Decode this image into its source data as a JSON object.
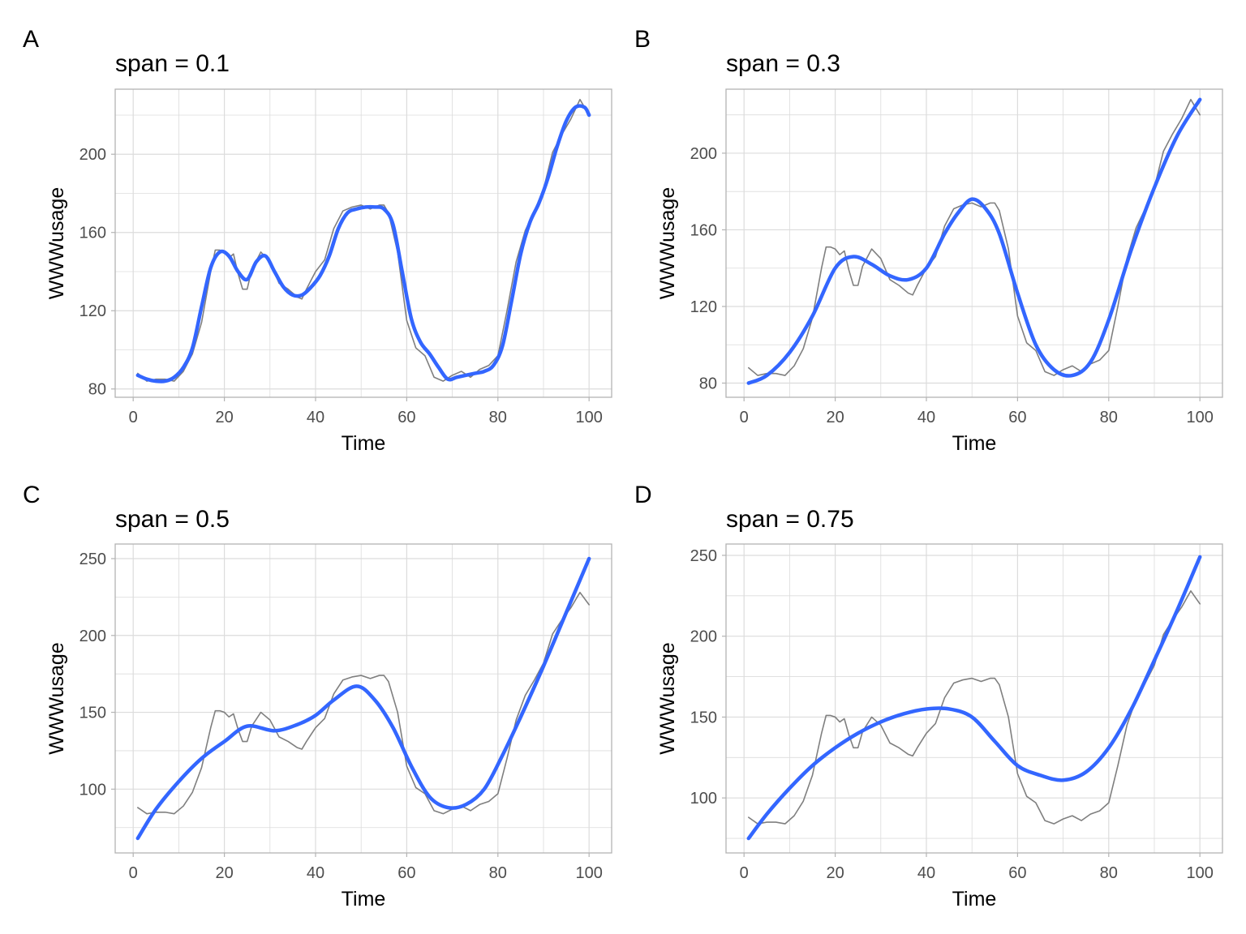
{
  "colors": {
    "raw_line": "#7f7f7f",
    "smooth_line": "#3366ff",
    "grid": "#dcdcdc",
    "panel_border": "#b3b3b3",
    "tick_text": "#4d4d4d"
  },
  "chart_data": [
    {
      "type": "line",
      "tag": "A",
      "title": "span = 0.1",
      "xlabel": "Time",
      "ylabel": "WWWusage",
      "xlim": [
        -3.95,
        104.95
      ],
      "ylim": [
        75.75,
        233.25
      ],
      "xticks": [
        0,
        20,
        40,
        60,
        80,
        100
      ],
      "yticks": [
        80,
        120,
        160,
        200
      ],
      "grid": true,
      "series": [
        {
          "key": "raw",
          "x": [
            1,
            3,
            5,
            7,
            9,
            11,
            13,
            15,
            17,
            18,
            19,
            20,
            21,
            22,
            23,
            24,
            25,
            26,
            28,
            30,
            32,
            34,
            36,
            37,
            38,
            40,
            42,
            44,
            46,
            48,
            50,
            52,
            54,
            55,
            56,
            58,
            60,
            62,
            64,
            66,
            68,
            70,
            72,
            74,
            76,
            78,
            80,
            82,
            84,
            86,
            88,
            90,
            92,
            94,
            96,
            97,
            98,
            100
          ],
          "y": [
            88,
            84,
            85,
            85,
            84,
            89,
            98,
            114,
            140,
            151,
            151,
            150,
            147,
            149,
            139,
            131,
            131,
            141,
            150,
            145,
            134,
            131,
            127,
            126,
            131,
            140,
            146,
            162,
            171,
            173,
            174,
            172,
            174,
            174,
            170,
            150,
            115,
            101,
            97,
            86,
            84,
            87,
            89,
            86,
            90,
            92,
            97,
            120,
            145,
            161,
            171,
            182,
            201,
            210,
            218,
            223,
            228,
            220
          ]
        },
        {
          "key": "smooth",
          "x": [
            1,
            3,
            5,
            7,
            9,
            11,
            13,
            15,
            17,
            19,
            21,
            23,
            25,
            27,
            29,
            31,
            33,
            35,
            37,
            39,
            41,
            43,
            45,
            47,
            49,
            51,
            53,
            55,
            57,
            59,
            61,
            63,
            65,
            67,
            69,
            71,
            73,
            75,
            77,
            79,
            81,
            83,
            85,
            87,
            89,
            91,
            93,
            95,
            97,
            99,
            100
          ],
          "y": [
            87,
            85,
            84,
            84,
            86,
            91,
            101,
            122,
            142,
            150,
            148,
            140,
            136,
            145,
            148,
            140,
            132,
            128,
            128,
            132,
            138,
            148,
            162,
            170,
            172,
            173,
            173,
            172,
            164,
            140,
            116,
            104,
            98,
            91,
            85,
            86,
            87,
            88,
            89,
            92,
            102,
            125,
            149,
            165,
            175,
            188,
            204,
            217,
            224,
            224,
            220
          ]
        }
      ]
    },
    {
      "type": "line",
      "tag": "B",
      "title": "span = 0.3",
      "xlabel": "Time",
      "ylabel": "WWWusage",
      "xlim": [
        -3.95,
        104.95
      ],
      "ylim": [
        72.6,
        233.4
      ],
      "xticks": [
        0,
        20,
        40,
        60,
        80,
        100
      ],
      "yticks": [
        80,
        120,
        160,
        200
      ],
      "grid": true,
      "series": [
        {
          "key": "raw",
          "x": [
            1,
            3,
            5,
            7,
            9,
            11,
            13,
            15,
            17,
            18,
            19,
            20,
            21,
            22,
            23,
            24,
            25,
            26,
            28,
            30,
            32,
            34,
            36,
            37,
            38,
            40,
            42,
            44,
            46,
            48,
            50,
            52,
            54,
            55,
            56,
            58,
            60,
            62,
            64,
            66,
            68,
            70,
            72,
            74,
            76,
            78,
            80,
            82,
            84,
            86,
            88,
            90,
            92,
            94,
            96,
            97,
            98,
            100
          ],
          "y": [
            88,
            84,
            85,
            85,
            84,
            89,
            98,
            114,
            140,
            151,
            151,
            150,
            147,
            149,
            139,
            131,
            131,
            141,
            150,
            145,
            134,
            131,
            127,
            126,
            131,
            140,
            146,
            162,
            171,
            173,
            174,
            172,
            174,
            174,
            170,
            150,
            115,
            101,
            97,
            86,
            84,
            87,
            89,
            86,
            90,
            92,
            97,
            120,
            145,
            161,
            171,
            182,
            201,
            210,
            218,
            223,
            228,
            220
          ]
        },
        {
          "key": "smooth",
          "x": [
            1,
            5,
            10,
            15,
            20,
            24,
            28,
            32,
            36,
            40,
            44,
            47,
            50,
            53,
            56,
            60,
            64,
            68,
            72,
            76,
            80,
            85,
            90,
            95,
            100
          ],
          "y": [
            80,
            84,
            96,
            115,
            140,
            146,
            142,
            136,
            134,
            140,
            158,
            169,
            176,
            171,
            158,
            127,
            100,
            87,
            84,
            91,
            113,
            150,
            182,
            209,
            228
          ]
        }
      ]
    },
    {
      "type": "line",
      "tag": "C",
      "title": "span = 0.5",
      "xlabel": "Time",
      "ylabel": "WWWusage",
      "xlim": [
        -3.95,
        104.95
      ],
      "ylim": [
        58.5,
        259.5
      ],
      "xticks": [
        0,
        20,
        40,
        60,
        80,
        100
      ],
      "yticks": [
        100,
        150,
        200,
        250
      ],
      "grid": true,
      "series": [
        {
          "key": "raw",
          "x": [
            1,
            3,
            5,
            7,
            9,
            11,
            13,
            15,
            17,
            18,
            19,
            20,
            21,
            22,
            23,
            24,
            25,
            26,
            28,
            30,
            32,
            34,
            36,
            37,
            38,
            40,
            42,
            44,
            46,
            48,
            50,
            52,
            54,
            55,
            56,
            58,
            60,
            62,
            64,
            66,
            68,
            70,
            72,
            74,
            76,
            78,
            80,
            82,
            84,
            86,
            88,
            90,
            92,
            94,
            96,
            97,
            98,
            100
          ],
          "y": [
            88,
            84,
            85,
            85,
            84,
            89,
            98,
            114,
            140,
            151,
            151,
            150,
            147,
            149,
            139,
            131,
            131,
            141,
            150,
            145,
            134,
            131,
            127,
            126,
            131,
            140,
            146,
            162,
            171,
            173,
            174,
            172,
            174,
            174,
            170,
            150,
            115,
            101,
            97,
            86,
            84,
            87,
            89,
            86,
            90,
            92,
            97,
            120,
            145,
            161,
            171,
            182,
            201,
            210,
            218,
            223,
            228,
            220
          ]
        },
        {
          "key": "smooth",
          "x": [
            1,
            5,
            10,
            15,
            20,
            25,
            31,
            36,
            40,
            44,
            49,
            53,
            57,
            61,
            65,
            69,
            73,
            77,
            81,
            85,
            90,
            95,
            100
          ],
          "y": [
            68,
            87,
            105,
            120,
            131,
            141,
            138,
            142,
            148,
            158,
            167,
            158,
            140,
            115,
            95,
            88,
            90,
            100,
            122,
            147,
            180,
            215,
            250
          ]
        }
      ]
    },
    {
      "type": "line",
      "tag": "D",
      "title": "span = 0.75",
      "xlabel": "Time",
      "ylabel": "WWWusage",
      "xlim": [
        -3.95,
        104.95
      ],
      "ylim": [
        66,
        257
      ],
      "xticks": [
        0,
        20,
        40,
        60,
        80,
        100
      ],
      "yticks": [
        100,
        150,
        200,
        250
      ],
      "grid": true,
      "series": [
        {
          "key": "raw",
          "x": [
            1,
            3,
            5,
            7,
            9,
            11,
            13,
            15,
            17,
            18,
            19,
            20,
            21,
            22,
            23,
            24,
            25,
            26,
            28,
            30,
            32,
            34,
            36,
            37,
            38,
            40,
            42,
            44,
            46,
            48,
            50,
            52,
            54,
            55,
            56,
            58,
            60,
            62,
            64,
            66,
            68,
            70,
            72,
            74,
            76,
            78,
            80,
            82,
            84,
            86,
            88,
            90,
            92,
            94,
            96,
            97,
            98,
            100
          ],
          "y": [
            88,
            84,
            85,
            85,
            84,
            89,
            98,
            114,
            140,
            151,
            151,
            150,
            147,
            149,
            139,
            131,
            131,
            141,
            150,
            145,
            134,
            131,
            127,
            126,
            131,
            140,
            146,
            162,
            171,
            173,
            174,
            172,
            174,
            174,
            170,
            150,
            115,
            101,
            97,
            86,
            84,
            87,
            89,
            86,
            90,
            92,
            97,
            120,
            145,
            161,
            171,
            182,
            201,
            210,
            218,
            223,
            228,
            220
          ]
        },
        {
          "key": "smooth",
          "x": [
            1,
            5,
            10,
            15,
            20,
            25,
            30,
            35,
            40,
            45,
            50,
            55,
            60,
            65,
            70,
            75,
            80,
            85,
            90,
            95,
            100
          ],
          "y": [
            75,
            90,
            106,
            120,
            131,
            140,
            147,
            152,
            155,
            155,
            150,
            135,
            120,
            114,
            111,
            116,
            131,
            155,
            185,
            216,
            249
          ]
        }
      ]
    }
  ]
}
